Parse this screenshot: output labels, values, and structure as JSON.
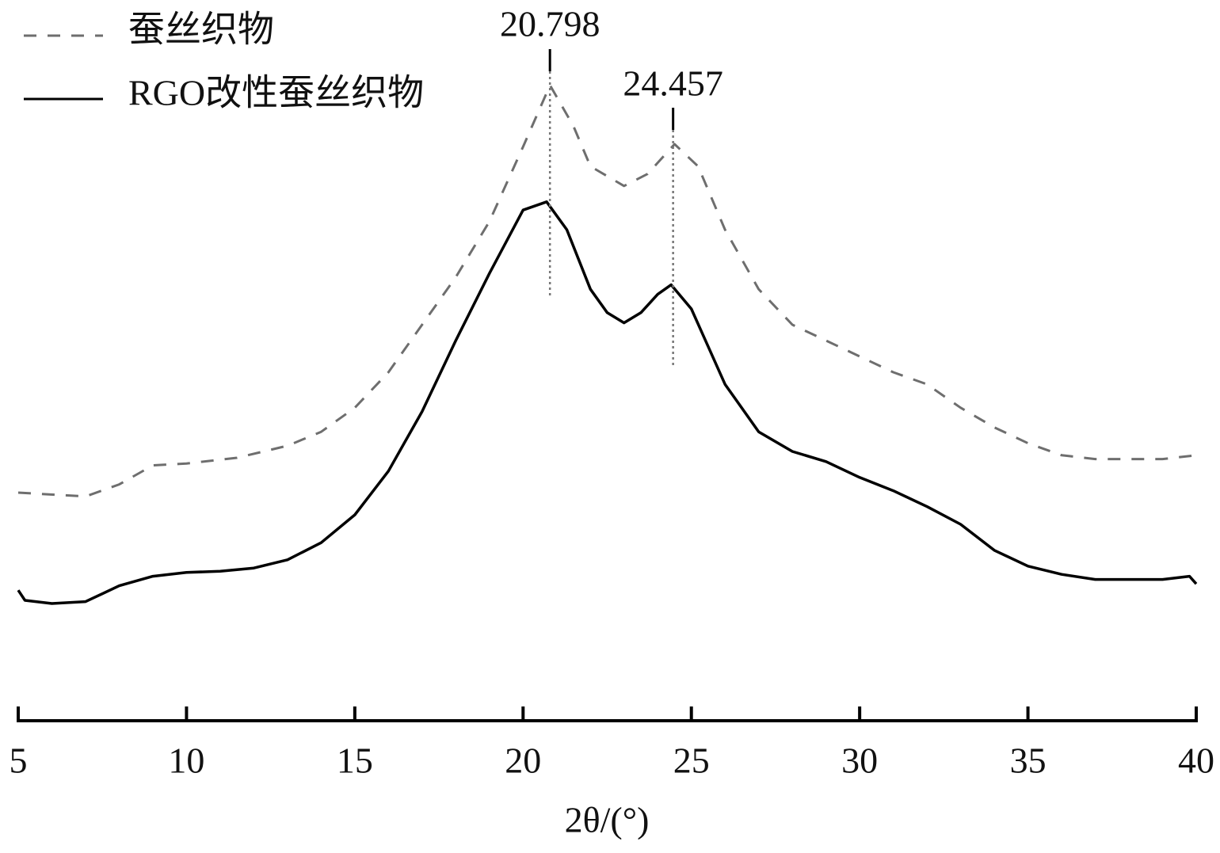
{
  "chart_data": {
    "type": "line",
    "xlabel": "2θ/(°)",
    "xlim": [
      5,
      40
    ],
    "xticks": [
      5,
      10,
      15,
      20,
      25,
      30,
      35,
      40
    ],
    "ylim": [
      0,
      105
    ],
    "legend": "upper left",
    "series": [
      {
        "name": "蚕丝织物",
        "color": "#6e6e6e",
        "dash": true,
        "x": [
          5,
          7,
          8,
          9,
          10,
          11.5,
          13,
          14,
          15,
          16,
          17,
          18,
          19,
          20,
          20.8,
          21.5,
          22,
          23,
          23.7,
          24.5,
          25.2,
          26,
          27,
          28,
          29,
          30,
          31,
          32,
          33,
          34,
          35,
          36,
          37,
          38,
          39,
          40
        ],
        "values": [
          36,
          35.4,
          37.3,
          40.3,
          40.6,
          41.5,
          43.4,
          45.6,
          49.4,
          55,
          62.5,
          70,
          78.8,
          90.6,
          100.3,
          93.8,
          87.5,
          84.4,
          86.3,
          91,
          87.5,
          77.5,
          68.1,
          62.5,
          60,
          57.5,
          55,
          53.1,
          49.4,
          46.3,
          43.8,
          41.9,
          41.3,
          41.3,
          41.3,
          41.9
        ]
      },
      {
        "name": "RGO改性蚕丝织物",
        "color": "#000000",
        "dash": false,
        "x": [
          5,
          5.2,
          6,
          7,
          8,
          9,
          10,
          11,
          12,
          13,
          14,
          15,
          16,
          17,
          18,
          19,
          20,
          20.7,
          21.3,
          22,
          22.5,
          23,
          23.5,
          24,
          24.4,
          25,
          26,
          27,
          28,
          29,
          30,
          31,
          32,
          33,
          34,
          35,
          36,
          37,
          38,
          39,
          39.8,
          40
        ],
        "values": [
          20.6,
          19,
          18.5,
          18.8,
          21.3,
          22.8,
          23.4,
          23.6,
          24.1,
          25.4,
          28.1,
          32.5,
          39.4,
          48.8,
          60,
          70.6,
          80.6,
          81.9,
          77.5,
          68.1,
          64.4,
          62.8,
          64.4,
          67.3,
          68.8,
          65,
          53.1,
          45.6,
          42.5,
          40.9,
          38.4,
          36.3,
          33.8,
          31,
          26.9,
          24.4,
          23.1,
          22.3,
          22.3,
          22.3,
          22.8,
          21.6
        ]
      }
    ],
    "annotations": [
      {
        "x": 20.798
      },
      {
        "x": 24.457
      }
    ]
  }
}
